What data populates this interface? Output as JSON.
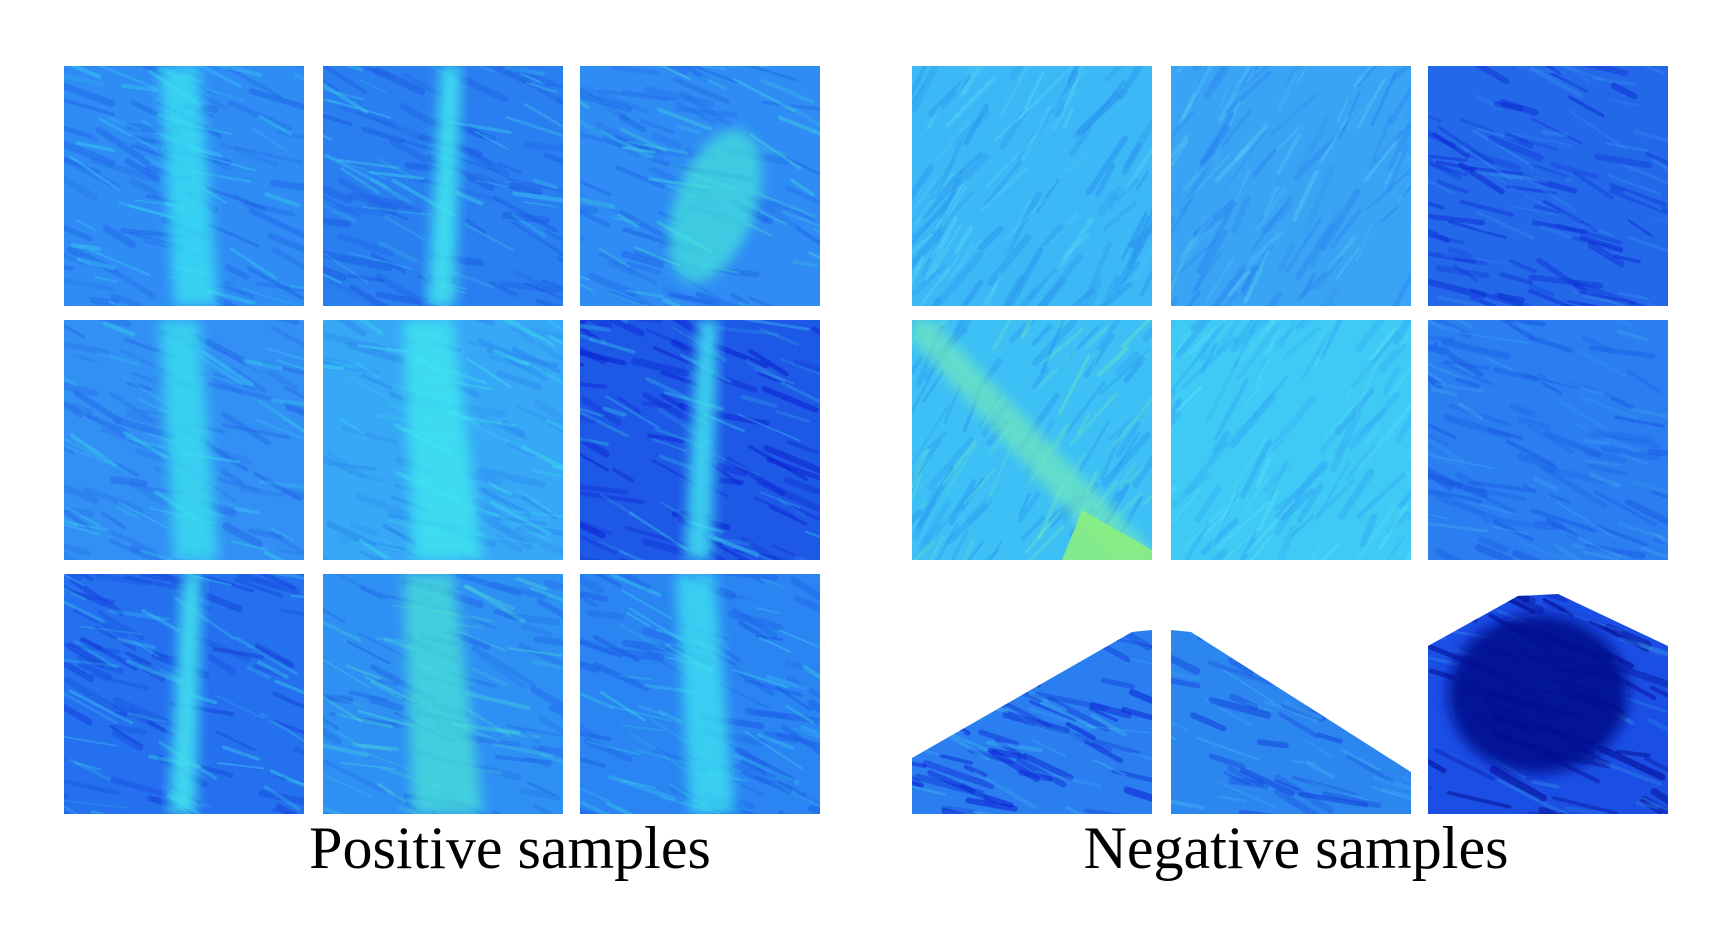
{
  "positive": {
    "caption": "Positive samples",
    "tiles": [
      {
        "base": "#2f8cf4",
        "streak": "#38e6f2",
        "dark": "#1f62e8",
        "pattern": "vertical-band"
      },
      {
        "base": "#2a7ff0",
        "streak": "#3fe8ee",
        "dark": "#1c5ae4",
        "pattern": "needle"
      },
      {
        "base": "#2f8cf4",
        "streak": "#45ecd8",
        "dark": "#1f66e8",
        "pattern": "diagonal-blob"
      },
      {
        "base": "#3290f4",
        "streak": "#3be4ef",
        "dark": "#2468ea",
        "pattern": "vertical-band"
      },
      {
        "base": "#36a8f6",
        "streak": "#3ff0ee",
        "dark": "#2a86f0",
        "pattern": "wide-band"
      },
      {
        "base": "#1e58e6",
        "streak": "#3fe0f0",
        "dark": "#0c20d2",
        "pattern": "needle"
      },
      {
        "base": "#2470ee",
        "streak": "#42e6ee",
        "dark": "#1440dc",
        "pattern": "needle"
      },
      {
        "base": "#2f90f4",
        "streak": "#4ae8d4",
        "dark": "#1f66e8",
        "pattern": "wide-band"
      },
      {
        "base": "#2a84f2",
        "streak": "#3ee6f0",
        "dark": "#1c5ce6",
        "pattern": "vertical-band"
      }
    ]
  },
  "negative": {
    "caption": "Negative samples",
    "tiles": [
      {
        "base": "#3db8f6",
        "streak": "#5fe2f8",
        "dark": "#2a94f0",
        "pattern": "diagonal-lines"
      },
      {
        "base": "#3aa4f4",
        "streak": "#5ad8f8",
        "dark": "#2a86f0",
        "pattern": "diagonal-lines"
      },
      {
        "base": "#2468ea",
        "streak": "#3a9cf2",
        "dark": "#0c2ad4",
        "pattern": "noise"
      },
      {
        "base": "#3cc0f6",
        "streak": "#7cf0b0",
        "dark": "#2a98f0",
        "pattern": "corner-edge"
      },
      {
        "base": "#3fcaf6",
        "streak": "#66eaf8",
        "dark": "#30a8f4",
        "pattern": "diagonal-lines"
      },
      {
        "base": "#2a7ef0",
        "streak": "#4cb0f4",
        "dark": "#1a58e4",
        "pattern": "noise"
      },
      {
        "base": "#2a7ef0",
        "streak": "#45c8f4",
        "dark": "#0c20d4",
        "pattern": "wedge-left"
      },
      {
        "base": "#2c86f0",
        "streak": "#48c8f4",
        "dark": "#1440dc",
        "pattern": "wedge-right"
      },
      {
        "base": "#1a4ee4",
        "streak": "#38a4f2",
        "dark": "#040a90",
        "pattern": "dome"
      }
    ]
  }
}
